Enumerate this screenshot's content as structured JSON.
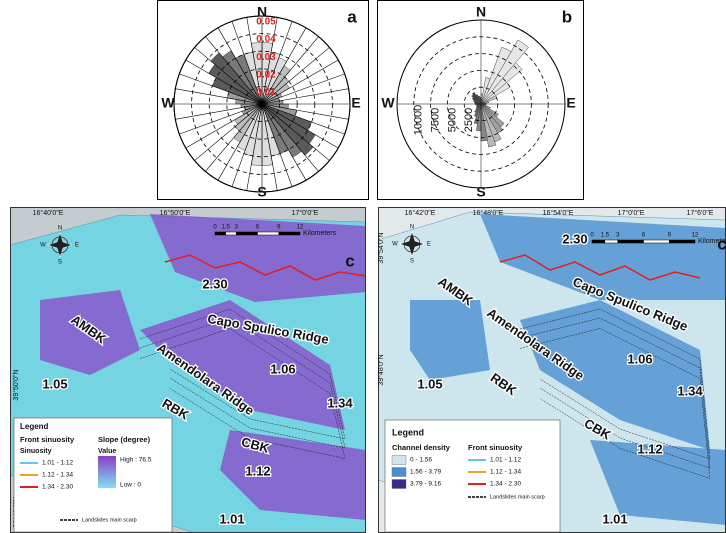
{
  "chart_data": [
    {
      "type": "rose",
      "panel_label": "a",
      "directions": [
        "N",
        "E",
        "S",
        "W"
      ],
      "ylim": [
        0,
        0.05
      ],
      "yticks": [
        0.01,
        0.02,
        0.03,
        0.04,
        0.05
      ],
      "spokes": true,
      "values": [
        0.035,
        0.03,
        0.028,
        0.025,
        0.02,
        0.018,
        0.012,
        0.01,
        0.012,
        0.015,
        0.02,
        0.03,
        0.035,
        0.038,
        0.035,
        0.03,
        0.03,
        0.035,
        0.035,
        0.03,
        0.028,
        0.025,
        0.02,
        0.018,
        0.012,
        0.01,
        0.012,
        0.015,
        0.02,
        0.03,
        0.035,
        0.038,
        0.035,
        0.03,
        0.03,
        0.035
      ],
      "colors": [
        "#dedede",
        "#dedede",
        "#dedede",
        "#bdbdbd",
        "#bdbdbd",
        "#bdbdbd",
        "#9a9a9a",
        "#9a9a9a",
        "#9a9a9a",
        "#9a9a9a",
        "#9a9a9a",
        "#5a5a5a",
        "#5a5a5a",
        "#5a5a5a",
        "#7a7a7a",
        "#7a7a7a",
        "#dedede",
        "#dedede",
        "#dedede",
        "#dedede",
        "#dedede",
        "#bdbdbd",
        "#bdbdbd",
        "#bdbdbd",
        "#9a9a9a",
        "#9a9a9a",
        "#9a9a9a",
        "#9a9a9a",
        "#9a9a9a",
        "#5a5a5a",
        "#5a5a5a",
        "#5a5a5a",
        "#7a7a7a",
        "#7a7a7a",
        "#dedede",
        "#dedede"
      ]
    },
    {
      "type": "rose",
      "panel_label": "b",
      "directions": [
        "N",
        "E",
        "S",
        "W"
      ],
      "ylim": [
        0,
        12500
      ],
      "yticks": [
        2500,
        5000,
        7500,
        10000
      ],
      "spokes": false,
      "values": [
        1500,
        4000,
        9000,
        11000,
        8000,
        5000,
        2500,
        1200,
        800,
        600,
        800,
        1500,
        3000,
        4500,
        5000,
        6000,
        6500,
        5500,
        4000,
        3000,
        2000,
        1500,
        1000,
        800,
        600,
        700,
        800,
        900,
        1000,
        1200,
        1500,
        1800,
        2000,
        1500,
        1200,
        1000
      ],
      "colors": [
        "#e6e6e6",
        "#e6e6e6",
        "#e6e6e6",
        "#e6e6e6",
        "#e6e6e6",
        "#e6e6e6",
        "#cfcfcf",
        "#cfcfcf",
        "#b0b0b0",
        "#b0b0b0",
        "#b0b0b0",
        "#a0a0a0",
        "#a0a0a0",
        "#a0a0a0",
        "#a0a0a0",
        "#b8b8b8",
        "#b8b8b8",
        "#8a8a8a",
        "#8a8a8a",
        "#7a7a7a",
        "#6a6a6a",
        "#5a5a5a",
        "#4a4a4a",
        "#404040",
        "#404040",
        "#404040",
        "#404040",
        "#404040",
        "#404040",
        "#404040",
        "#404040",
        "#404040",
        "#404040",
        "#505050",
        "#606060",
        "#808080"
      ]
    }
  ],
  "maps": [
    {
      "panel_label": "c",
      "longitudes": [
        "16°40'0\"E",
        "16°50'0\"E",
        "17°0'0\"E"
      ],
      "latitudes": [
        "39°50'0\"N",
        "39°40'0\"N"
      ],
      "compass": [
        "N",
        "S",
        "E",
        "W"
      ],
      "scale": {
        "ticks": [
          0,
          1.5,
          3,
          6,
          9,
          12
        ],
        "unit": "Kilometers"
      },
      "features": [
        "2.30",
        "AMBK",
        "Capo Spulico Ridge",
        "1.06",
        "1.05",
        "Amendolara Ridge",
        "RBK",
        "1.34",
        "CBK",
        "1.12",
        "1.01"
      ],
      "legend": {
        "title": "Legend",
        "front_title": "Front sinuosity",
        "front_subtitle": "Sinuosity",
        "front_items": [
          {
            "label": "1.01 - 1.12",
            "color": "#5ec8e8"
          },
          {
            "label": "1.12 - 1.34",
            "color": "#f0a030"
          },
          {
            "label": "1.34 - 2.30",
            "color": "#e02020"
          }
        ],
        "slope_title": "Slope (degree)",
        "slope_subtitle": "Value",
        "high": "High : 76.5",
        "low": "Low : 0",
        "high_color": "#8a3cc8",
        "low_color": "#7fe3f0",
        "scarp": "Landslides main scarp"
      }
    },
    {
      "panel_label": "c",
      "longitudes": [
        "16°42'0\"E",
        "16°48'0\"E",
        "16°54'0\"E",
        "17°0'0\"E",
        "17°6'0\"E"
      ],
      "latitudes": [
        "39°54'0\"N",
        "39°48'0\"N"
      ],
      "compass": [
        "N",
        "S",
        "E",
        "W"
      ],
      "scale": {
        "ticks": [
          0,
          1.5,
          3,
          6,
          9,
          12
        ],
        "unit": "Kilometers"
      },
      "features": [
        "2.30",
        "AMBK",
        "Capo Spulico Ridge",
        "1.06",
        "1.05",
        "Amendolara Ridge",
        "RBK",
        "1.34",
        "CBK",
        "1.12",
        "1.01"
      ],
      "legend": {
        "title": "Legend",
        "density_title": "Channel density",
        "front_title": "Front sinuosity",
        "density_items": [
          {
            "label": "0 - 1.56",
            "color": "#cde6ee"
          },
          {
            "label": "1.56 - 3.79",
            "color": "#4b8fd0"
          },
          {
            "label": "3.79 - 9.16",
            "color": "#3a2a8c"
          }
        ],
        "front_items": [
          {
            "label": "1.01 - 1.12",
            "color": "#5ec8e8"
          },
          {
            "label": "1.12 - 1.34",
            "color": "#f0a030"
          },
          {
            "label": "1.34 - 2.30",
            "color": "#e02020"
          }
        ],
        "scarp": "Landslides main scarp"
      }
    }
  ]
}
